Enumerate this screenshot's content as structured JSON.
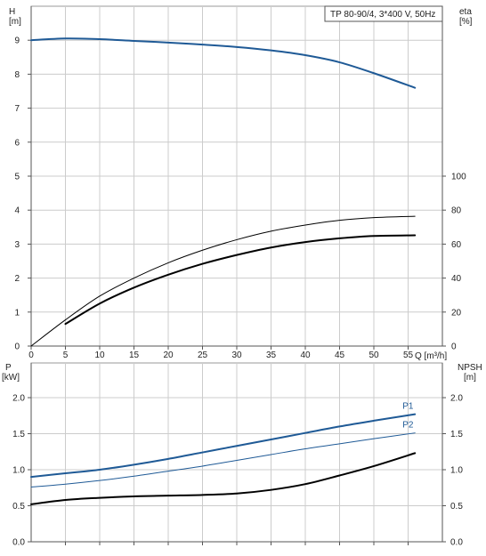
{
  "chart_data": [
    {
      "type": "line",
      "id": "head-efficiency",
      "title": "TP 80-90/4, 3*400 V, 50Hz",
      "y_left_label": [
        "H",
        "[m]"
      ],
      "y_right_label": [
        "eta",
        "[%]"
      ],
      "x_label": "Q [m³/h]",
      "xlim": [
        0,
        60
      ],
      "ylim_left": [
        0,
        10
      ],
      "ylim_right": [
        0,
        200
      ],
      "x_ticks": [
        "0",
        "5",
        "10",
        "15",
        "20",
        "25",
        "30",
        "35",
        "40",
        "45",
        "50",
        "55"
      ],
      "y_left_ticks": [
        "0",
        "1",
        "2",
        "3",
        "4",
        "5",
        "6",
        "7",
        "8",
        "9"
      ],
      "y_right_ticks": [
        "0",
        "20",
        "40",
        "60",
        "80",
        "100"
      ],
      "grid": true,
      "series": [
        {
          "axis": "left",
          "color": "#1f5a96",
          "width": 2,
          "x": [
            0,
            5,
            10,
            15,
            20,
            25,
            30,
            35,
            40,
            45,
            50,
            56
          ],
          "y": [
            9.0,
            9.05,
            9.03,
            8.98,
            8.93,
            8.87,
            8.8,
            8.7,
            8.56,
            8.35,
            8.03,
            7.6
          ]
        },
        {
          "axis": "left",
          "color": "#000000",
          "width": 1,
          "x": [
            0,
            5,
            10,
            15,
            20,
            25,
            30,
            35,
            40,
            45,
            50,
            56
          ],
          "y": [
            0.0,
            0.77,
            1.47,
            2.0,
            2.45,
            2.82,
            3.13,
            3.38,
            3.56,
            3.7,
            3.78,
            3.82
          ]
        },
        {
          "axis": "left",
          "color": "#000000",
          "width": 2,
          "x": [
            5,
            10,
            15,
            20,
            25,
            30,
            35,
            40,
            45,
            50,
            56
          ],
          "y": [
            0.65,
            1.25,
            1.72,
            2.1,
            2.42,
            2.68,
            2.9,
            3.06,
            3.17,
            3.24,
            3.26
          ]
        }
      ]
    },
    {
      "type": "line",
      "id": "power-npsh",
      "y_left_label": [
        "P",
        "[kW]"
      ],
      "y_right_label": [
        "NPSH",
        "[m]"
      ],
      "xlim": [
        0,
        60
      ],
      "ylim": [
        0,
        2.0
      ],
      "y_left_ticks": [
        "0.0",
        "0.5",
        "1.0",
        "1.5",
        "2.0"
      ],
      "y_right_ticks": [
        "0.0",
        "0.5",
        "1.0",
        "1.5",
        "2.0"
      ],
      "grid": true,
      "series": [
        {
          "name": "P1",
          "axis": "left",
          "color": "#1f5a96",
          "width": 2,
          "x": [
            0,
            5,
            10,
            15,
            20,
            25,
            30,
            35,
            40,
            45,
            50,
            56
          ],
          "y": [
            0.9,
            0.95,
            1.0,
            1.07,
            1.15,
            1.24,
            1.33,
            1.42,
            1.51,
            1.6,
            1.68,
            1.77
          ]
        },
        {
          "name": "P2",
          "axis": "left",
          "color": "#1f5a96",
          "width": 1,
          "x": [
            0,
            5,
            10,
            15,
            20,
            25,
            30,
            35,
            40,
            45,
            50,
            56
          ],
          "y": [
            0.76,
            0.8,
            0.85,
            0.91,
            0.98,
            1.05,
            1.13,
            1.21,
            1.29,
            1.36,
            1.43,
            1.51
          ]
        },
        {
          "axis": "right",
          "color": "#000000",
          "width": 2,
          "x": [
            0,
            5,
            10,
            15,
            20,
            25,
            30,
            35,
            40,
            45,
            50,
            56
          ],
          "y": [
            0.52,
            0.58,
            0.61,
            0.63,
            0.64,
            0.65,
            0.67,
            0.72,
            0.8,
            0.92,
            1.05,
            1.23
          ]
        }
      ]
    }
  ]
}
